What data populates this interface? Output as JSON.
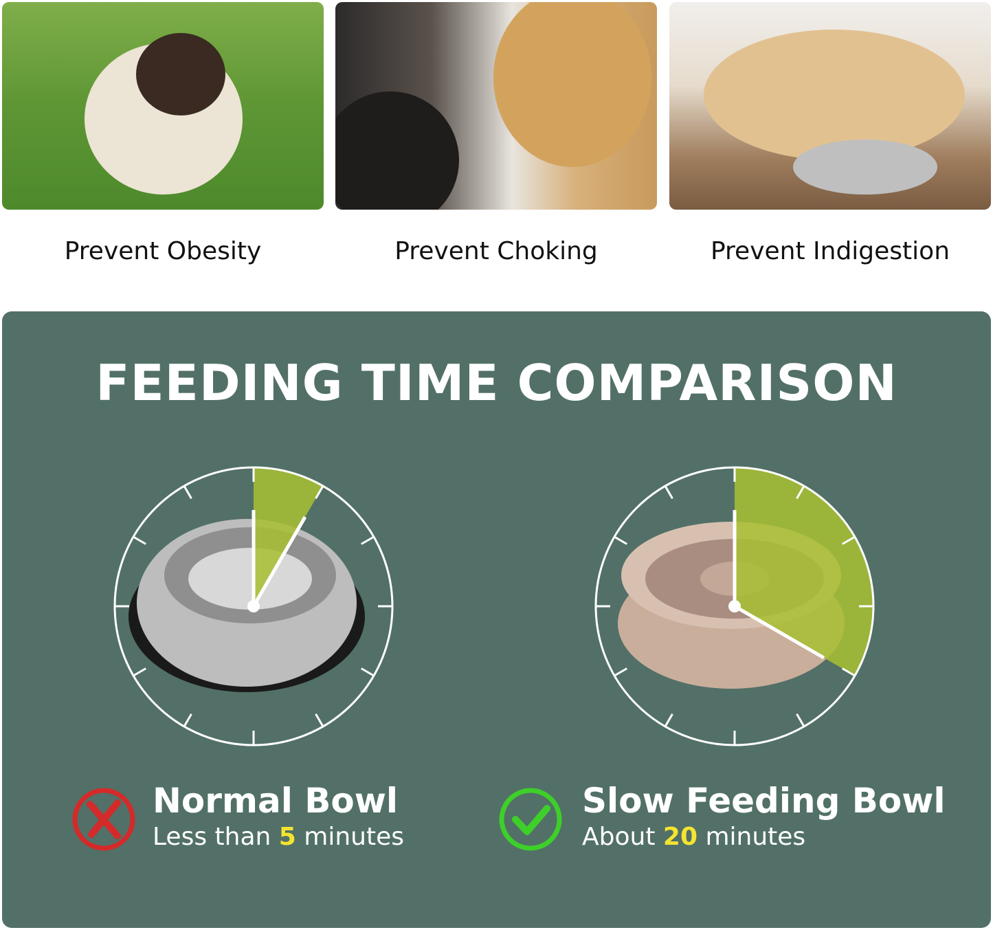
{
  "benefits": [
    {
      "label": "Prevent Obesity"
    },
    {
      "label": "Prevent Choking"
    },
    {
      "label": "Prevent Indigestion"
    }
  ],
  "comparison": {
    "title": "FEEDING TIME COMPARISON",
    "accent_color": "#f4e431",
    "sector_color": "#a8bf32",
    "panel_color": "#527067",
    "normal": {
      "name": "Normal Bowl",
      "prefix": "Less than ",
      "minutes": "5",
      "suffix": " minutes",
      "icon": "red-x-circle-icon",
      "icon_color": "#d42a2a",
      "dial_minutes": 5
    },
    "slow": {
      "name": "Slow Feeding Bowl",
      "prefix": "About ",
      "minutes": "20",
      "suffix": " minutes",
      "icon": "green-check-circle-icon",
      "icon_color": "#3ecf2a",
      "dial_minutes": 20
    }
  }
}
